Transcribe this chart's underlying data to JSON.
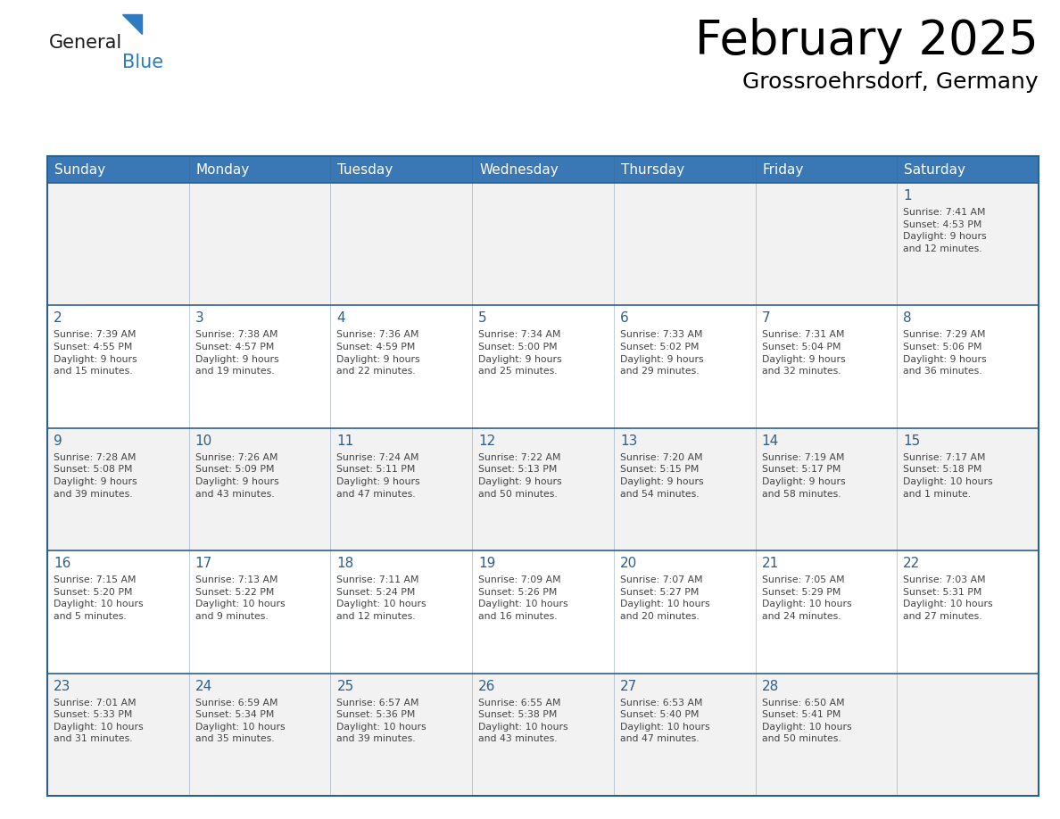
{
  "title": "February 2025",
  "subtitle": "Grossroehrsdorf, Germany",
  "header_bg": "#3a78b5",
  "header_text_color": "#ffffff",
  "day_names": [
    "Sunday",
    "Monday",
    "Tuesday",
    "Wednesday",
    "Thursday",
    "Friday",
    "Saturday"
  ],
  "row_bg_week1": "#f2f2f2",
  "row_bg_odd": "#ffffff",
  "row_bg_even": "#f2f2f2",
  "cell_border_color": "#2e5f8a",
  "day_num_color": "#2e5f8a",
  "info_text_color": "#444444",
  "calendar": [
    [
      null,
      null,
      null,
      null,
      null,
      null,
      {
        "day": 1,
        "sunrise": "7:41 AM",
        "sunset": "4:53 PM",
        "daylight": "9 hours\nand 12 minutes."
      }
    ],
    [
      {
        "day": 2,
        "sunrise": "7:39 AM",
        "sunset": "4:55 PM",
        "daylight": "9 hours\nand 15 minutes."
      },
      {
        "day": 3,
        "sunrise": "7:38 AM",
        "sunset": "4:57 PM",
        "daylight": "9 hours\nand 19 minutes."
      },
      {
        "day": 4,
        "sunrise": "7:36 AM",
        "sunset": "4:59 PM",
        "daylight": "9 hours\nand 22 minutes."
      },
      {
        "day": 5,
        "sunrise": "7:34 AM",
        "sunset": "5:00 PM",
        "daylight": "9 hours\nand 25 minutes."
      },
      {
        "day": 6,
        "sunrise": "7:33 AM",
        "sunset": "5:02 PM",
        "daylight": "9 hours\nand 29 minutes."
      },
      {
        "day": 7,
        "sunrise": "7:31 AM",
        "sunset": "5:04 PM",
        "daylight": "9 hours\nand 32 minutes."
      },
      {
        "day": 8,
        "sunrise": "7:29 AM",
        "sunset": "5:06 PM",
        "daylight": "9 hours\nand 36 minutes."
      }
    ],
    [
      {
        "day": 9,
        "sunrise": "7:28 AM",
        "sunset": "5:08 PM",
        "daylight": "9 hours\nand 39 minutes."
      },
      {
        "day": 10,
        "sunrise": "7:26 AM",
        "sunset": "5:09 PM",
        "daylight": "9 hours\nand 43 minutes."
      },
      {
        "day": 11,
        "sunrise": "7:24 AM",
        "sunset": "5:11 PM",
        "daylight": "9 hours\nand 47 minutes."
      },
      {
        "day": 12,
        "sunrise": "7:22 AM",
        "sunset": "5:13 PM",
        "daylight": "9 hours\nand 50 minutes."
      },
      {
        "day": 13,
        "sunrise": "7:20 AM",
        "sunset": "5:15 PM",
        "daylight": "9 hours\nand 54 minutes."
      },
      {
        "day": 14,
        "sunrise": "7:19 AM",
        "sunset": "5:17 PM",
        "daylight": "9 hours\nand 58 minutes."
      },
      {
        "day": 15,
        "sunrise": "7:17 AM",
        "sunset": "5:18 PM",
        "daylight": "10 hours\nand 1 minute."
      }
    ],
    [
      {
        "day": 16,
        "sunrise": "7:15 AM",
        "sunset": "5:20 PM",
        "daylight": "10 hours\nand 5 minutes."
      },
      {
        "day": 17,
        "sunrise": "7:13 AM",
        "sunset": "5:22 PM",
        "daylight": "10 hours\nand 9 minutes."
      },
      {
        "day": 18,
        "sunrise": "7:11 AM",
        "sunset": "5:24 PM",
        "daylight": "10 hours\nand 12 minutes."
      },
      {
        "day": 19,
        "sunrise": "7:09 AM",
        "sunset": "5:26 PM",
        "daylight": "10 hours\nand 16 minutes."
      },
      {
        "day": 20,
        "sunrise": "7:07 AM",
        "sunset": "5:27 PM",
        "daylight": "10 hours\nand 20 minutes."
      },
      {
        "day": 21,
        "sunrise": "7:05 AM",
        "sunset": "5:29 PM",
        "daylight": "10 hours\nand 24 minutes."
      },
      {
        "day": 22,
        "sunrise": "7:03 AM",
        "sunset": "5:31 PM",
        "daylight": "10 hours\nand 27 minutes."
      }
    ],
    [
      {
        "day": 23,
        "sunrise": "7:01 AM",
        "sunset": "5:33 PM",
        "daylight": "10 hours\nand 31 minutes."
      },
      {
        "day": 24,
        "sunrise": "6:59 AM",
        "sunset": "5:34 PM",
        "daylight": "10 hours\nand 35 minutes."
      },
      {
        "day": 25,
        "sunrise": "6:57 AM",
        "sunset": "5:36 PM",
        "daylight": "10 hours\nand 39 minutes."
      },
      {
        "day": 26,
        "sunrise": "6:55 AM",
        "sunset": "5:38 PM",
        "daylight": "10 hours\nand 43 minutes."
      },
      {
        "day": 27,
        "sunrise": "6:53 AM",
        "sunset": "5:40 PM",
        "daylight": "10 hours\nand 47 minutes."
      },
      {
        "day": 28,
        "sunrise": "6:50 AM",
        "sunset": "5:41 PM",
        "daylight": "10 hours\nand 50 minutes."
      },
      null
    ]
  ],
  "logo_general_color": "#1a1a1a",
  "logo_blue_color": "#2d7cc1",
  "logo_triangle_color": "#2d7cc1",
  "fig_width": 11.88,
  "fig_height": 9.18,
  "dpi": 100
}
